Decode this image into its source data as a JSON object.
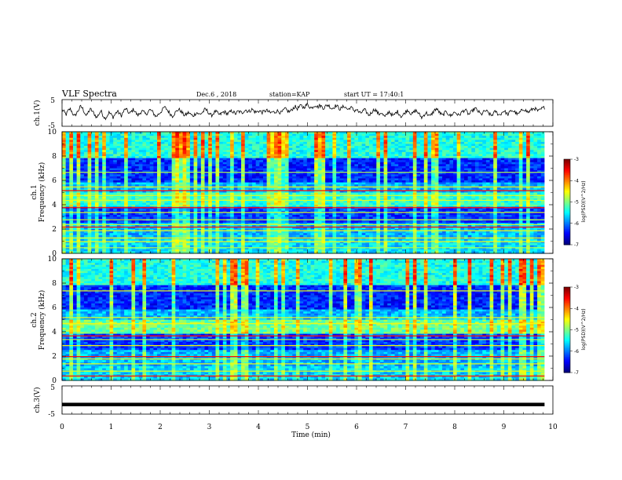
{
  "header": {
    "title": "VLF Spectra",
    "date": "Dec.6 , 2018",
    "station": "station=KAP",
    "start": "start UT = 17:40:1"
  },
  "colors": {
    "line": "#000000",
    "background": "#ffffff"
  },
  "chart_data": [
    {
      "type": "line",
      "name": "ch1-time-series",
      "ylabel": "ch.1(V)",
      "ylim": [
        -5,
        5
      ],
      "yticks": [
        "5",
        "-5"
      ],
      "xlim": [
        0,
        10
      ],
      "samples": [
        1.2,
        0.4,
        -0.6,
        0.8,
        1.6,
        0.2,
        -1.4,
        -0.2,
        1.0,
        2.4,
        1.8,
        0.2,
        -1.2,
        0.6,
        1.4,
        0.4,
        -0.6,
        -1.8,
        -0.4,
        0.8,
        -0.8,
        -2.0,
        -1.2,
        0.2,
        -0.6,
        -1.6,
        -0.4,
        0.6,
        -0.2,
        -1.0,
        0.4,
        1.6,
        0.8,
        -0.4,
        0.6,
        1.4,
        0.2,
        -1.0,
        -0.2,
        0.8,
        0.2,
        -0.6,
        0.4,
        1.2,
        0.6,
        -0.4,
        -1.4,
        -0.6,
        0.2,
        1.0,
        2.2,
        1.6,
        0.6,
        -0.4,
        -1.2,
        -0.2,
        0.6,
        1.4,
        0.8,
        -0.2,
        -1.0,
        -0.4,
        0.2,
        -0.6,
        -1.2,
        -0.4,
        0.2,
        -0.6,
        -0.2,
        0.4,
        1.4,
        0.8,
        -0.2,
        -1.0,
        -0.2,
        0.6,
        0.0,
        -0.8,
        -0.2,
        0.4,
        0.2,
        -0.4,
        0.2,
        0.8,
        0.2,
        -0.4,
        0.6,
        0.4,
        0.0,
        0.8,
        1.2,
        0.4,
        0.8,
        1.4,
        0.6,
        0.2,
        0.8,
        0.6,
        0.2,
        0.6,
        1.0,
        0.4,
        0.0,
        0.4,
        0.2,
        0.8,
        0.6,
        0.0,
        0.6,
        1.6,
        1.0,
        0.4,
        0.8,
        1.8,
        2.4,
        1.6,
        2.2,
        2.8,
        2.0,
        2.6,
        3.2,
        2.4,
        1.8,
        2.6,
        3.0,
        2.2,
        2.8,
        2.4,
        1.8,
        2.6,
        3.0,
        2.4,
        1.6,
        2.2,
        2.8,
        2.2,
        1.4,
        2.0,
        2.6,
        1.8,
        1.2,
        2.2,
        1.6,
        0.8,
        1.4,
        0.4,
        -0.2,
        0.6,
        1.2,
        0.2,
        -0.8,
        -0.2,
        0.8,
        1.4,
        0.4,
        -0.6,
        0.2,
        -0.8,
        -1.6,
        -0.4,
        0.6,
        -0.4,
        -1.2,
        -0.2,
        0.6,
        -0.4,
        -1.4,
        -0.6,
        0.4,
        1.2,
        0.4,
        -0.6,
        0.2,
        1.0,
        0.2,
        -0.8,
        -1.8,
        -0.8,
        0.2,
        -0.6,
        -1.4,
        -0.2,
        0.8,
        1.6,
        0.8,
        -0.2,
        -1.0,
        -0.2,
        0.6,
        -0.4,
        -1.2,
        -0.4,
        0.4,
        -0.2,
        -1.0,
        -0.2,
        0.6,
        1.2,
        0.4,
        -0.6,
        0.2,
        1.0,
        1.8,
        1.0,
        0.2,
        -0.6,
        0.2,
        0.8,
        0.4,
        -0.4,
        -1.0,
        -0.2,
        0.6,
        -0.2,
        -0.8,
        0.0,
        0.8,
        0.2,
        -0.6,
        0.2,
        1.0,
        0.6,
        0.0,
        -0.6,
        0.2,
        1.0,
        1.6,
        0.8,
        0.2,
        0.8,
        1.4,
        1.8,
        1.2,
        0.6,
        1.2,
        1.8,
        2.0
      ]
    },
    {
      "type": "heatmap",
      "name": "ch1-spectrogram",
      "ylabel": "ch.1",
      "ylabel2": "Frequency (kHz)",
      "ylim": [
        0,
        10
      ],
      "yticks": [
        "0",
        "2",
        "4",
        "6",
        "8",
        "10"
      ],
      "xlim": [
        0,
        10
      ],
      "colorbar": {
        "label": "log(PSD)(V^2/Hz)",
        "range": [
          -7,
          -3
        ],
        "ticks": [
          "-3",
          "-4",
          "-5",
          "-6",
          "-7"
        ]
      }
    },
    {
      "type": "heatmap",
      "name": "ch2-spectrogram",
      "ylabel": "ch.2",
      "ylabel2": "Frequency (kHz)",
      "ylim": [
        0,
        10
      ],
      "yticks": [
        "0",
        "2",
        "4",
        "6",
        "8",
        "10"
      ],
      "xlim": [
        0,
        10
      ],
      "colorbar": {
        "label": "log(PSD)(V^2/Hz)",
        "range": [
          -7,
          -3
        ],
        "ticks": [
          "-3",
          "-4",
          "-5",
          "-6",
          "-7"
        ]
      }
    },
    {
      "type": "line",
      "name": "ch3-time-series",
      "ylabel": "ch.3(V)",
      "ylim": [
        -5,
        5
      ],
      "yticks": [
        "5",
        "-5"
      ],
      "xlim": [
        0,
        10
      ],
      "values": [
        -1.6,
        -1.6
      ]
    }
  ],
  "xaxis": {
    "label": "Time (min)",
    "ticks": [
      "0",
      "1",
      "2",
      "3",
      "4",
      "5",
      "6",
      "7",
      "8",
      "9",
      "10"
    ]
  }
}
